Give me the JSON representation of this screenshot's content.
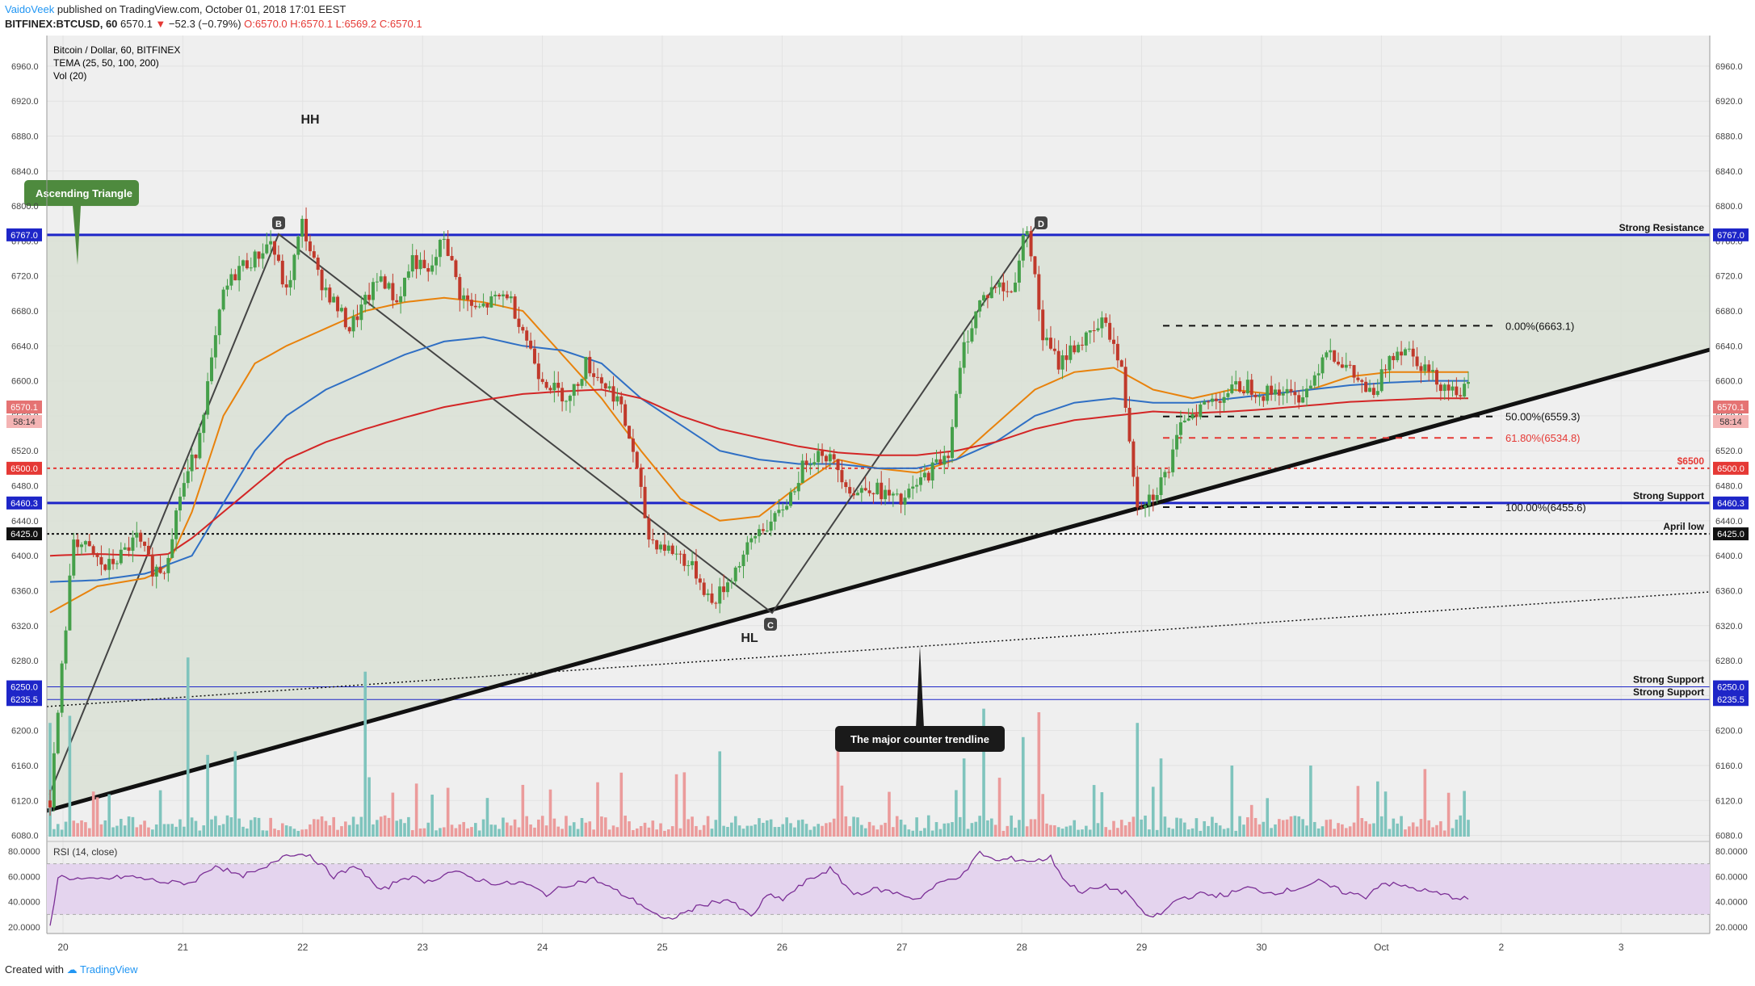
{
  "header": {
    "author": "VaidoVeek",
    "published": "published on TradingView.com, October 01, 2018 17:01 EEST"
  },
  "symbol_line": {
    "symbol": "BITFINEX:BTCUSD, 60",
    "last": "6570.1",
    "change": "−52.3 (−0.79%)",
    "ohlc": "O:6570.0 H:6570.1 L:6569.2 C:6570.1"
  },
  "legend": {
    "title": "Bitcoin / Dollar, 60, BITFINEX",
    "tema": "TEMA (25, 50, 100, 200)",
    "vol": "Vol (20)"
  },
  "footer": {
    "created": "Created with",
    "brand": "TradingView"
  },
  "colors": {
    "background": "#efefef",
    "panel": "#d9e1d5",
    "up": "#45a04a",
    "down": "#c0392b",
    "vol_up": "#7fc4bd",
    "vol_down": "#eb9b9b",
    "tema25": "#e8820c",
    "tema50": "#2f6fc4",
    "tema200": "#d32626",
    "support_blue": "#1e26c8",
    "rsi_fill": "#e4d4ee",
    "rsi_line": "#7b2f96"
  },
  "chart_data": {
    "type": "candlestick",
    "title": "Bitcoin / Dollar, 60, BITFINEX",
    "price_ylim": [
      6075,
      6995
    ],
    "y_ticks": [
      "6960.0",
      "6920.0",
      "6880.0",
      "6840.0",
      "6800.0",
      "6760.0",
      "6720.0",
      "6680.0",
      "6640.0",
      "6600.0",
      "6560.0",
      "6520.0",
      "6480.0",
      "6440.0",
      "6400.0",
      "6360.0",
      "6320.0",
      "6280.0",
      "6240.0",
      "6200.0",
      "6160.0",
      "6120.0",
      "6080.0"
    ],
    "x_labels": [
      "20",
      "21",
      "22",
      "23",
      "24",
      "25",
      "26",
      "27",
      "28",
      "29",
      "30",
      "Oct",
      "2",
      "3"
    ],
    "price_anchors": [
      [
        0,
        6120
      ],
      [
        6,
        6420
      ],
      [
        10,
        6405
      ],
      [
        14,
        6385
      ],
      [
        18,
        6400
      ],
      [
        22,
        6420
      ],
      [
        26,
        6385
      ],
      [
        29,
        6385
      ],
      [
        33,
        6470
      ],
      [
        37,
        6520
      ],
      [
        41,
        6620
      ],
      [
        44,
        6700
      ],
      [
        48,
        6730
      ],
      [
        52,
        6740
      ],
      [
        56,
        6760
      ],
      [
        60,
        6700
      ],
      [
        64,
        6780
      ],
      [
        68,
        6720
      ],
      [
        72,
        6690
      ],
      [
        76,
        6660
      ],
      [
        80,
        6690
      ],
      [
        84,
        6720
      ],
      [
        88,
        6690
      ],
      [
        92,
        6740
      ],
      [
        96,
        6720
      ],
      [
        100,
        6765
      ],
      [
        104,
        6700
      ],
      [
        108,
        6680
      ],
      [
        112,
        6690
      ],
      [
        116,
        6700
      ],
      [
        120,
        6660
      ],
      [
        124,
        6610
      ],
      [
        128,
        6590
      ],
      [
        132,
        6580
      ],
      [
        136,
        6620
      ],
      [
        140,
        6600
      ],
      [
        144,
        6580
      ],
      [
        148,
        6520
      ],
      [
        152,
        6420
      ],
      [
        156,
        6410
      ],
      [
        160,
        6400
      ],
      [
        164,
        6380
      ],
      [
        168,
        6345
      ],
      [
        172,
        6370
      ],
      [
        176,
        6400
      ],
      [
        180,
        6430
      ],
      [
        184,
        6440
      ],
      [
        188,
        6470
      ],
      [
        192,
        6510
      ],
      [
        196,
        6520
      ],
      [
        200,
        6500
      ],
      [
        204,
        6470
      ],
      [
        208,
        6480
      ],
      [
        212,
        6470
      ],
      [
        216,
        6460
      ],
      [
        220,
        6480
      ],
      [
        224,
        6500
      ],
      [
        228,
        6520
      ],
      [
        232,
        6640
      ],
      [
        236,
        6690
      ],
      [
        240,
        6710
      ],
      [
        244,
        6700
      ],
      [
        248,
        6780
      ],
      [
        252,
        6650
      ],
      [
        256,
        6620
      ],
      [
        260,
        6640
      ],
      [
        264,
        6650
      ],
      [
        268,
        6670
      ],
      [
        272,
        6610
      ],
      [
        276,
        6460
      ],
      [
        280,
        6470
      ],
      [
        284,
        6500
      ],
      [
        288,
        6560
      ],
      [
        292,
        6570
      ],
      [
        296,
        6580
      ],
      [
        300,
        6590
      ],
      [
        304,
        6595
      ],
      [
        308,
        6585
      ],
      [
        312,
        6590
      ],
      [
        316,
        6580
      ],
      [
        320,
        6595
      ],
      [
        324,
        6640
      ],
      [
        328,
        6620
      ],
      [
        332,
        6600
      ],
      [
        336,
        6580
      ],
      [
        340,
        6630
      ],
      [
        344,
        6640
      ],
      [
        348,
        6620
      ],
      [
        352,
        6600
      ],
      [
        356,
        6590
      ]
    ],
    "volume_spikes": [
      [
        0,
        160
      ],
      [
        5,
        170
      ],
      [
        35,
        185
      ],
      [
        40,
        115
      ],
      [
        47,
        120
      ],
      [
        80,
        175
      ],
      [
        145,
        90
      ],
      [
        170,
        120
      ],
      [
        200,
        140
      ],
      [
        232,
        110
      ],
      [
        237,
        180
      ],
      [
        247,
        140
      ],
      [
        251,
        175
      ],
      [
        276,
        160
      ],
      [
        282,
        110
      ],
      [
        300,
        100
      ],
      [
        320,
        100
      ],
      [
        349,
        95
      ]
    ],
    "rsi": {
      "label": "RSI (14, close)",
      "ylim": [
        15,
        85
      ],
      "ticks": [
        "80.0000",
        "60.0000",
        "40.0000",
        "20.0000"
      ],
      "anchors": [
        [
          0,
          20
        ],
        [
          2,
          60
        ],
        [
          10,
          57
        ],
        [
          20,
          60
        ],
        [
          30,
          55
        ],
        [
          36,
          55
        ],
        [
          42,
          69
        ],
        [
          48,
          60
        ],
        [
          54,
          65
        ],
        [
          60,
          78
        ],
        [
          66,
          77
        ],
        [
          72,
          60
        ],
        [
          78,
          68
        ],
        [
          84,
          48
        ],
        [
          90,
          60
        ],
        [
          96,
          56
        ],
        [
          102,
          64
        ],
        [
          108,
          58
        ],
        [
          114,
          54
        ],
        [
          120,
          55
        ],
        [
          126,
          46
        ],
        [
          132,
          54
        ],
        [
          138,
          58
        ],
        [
          144,
          48
        ],
        [
          150,
          38
        ],
        [
          156,
          25
        ],
        [
          160,
          30
        ],
        [
          166,
          38
        ],
        [
          172,
          42
        ],
        [
          178,
          28
        ],
        [
          182,
          45
        ],
        [
          186,
          42
        ],
        [
          192,
          56
        ],
        [
          198,
          66
        ],
        [
          204,
          46
        ],
        [
          210,
          50
        ],
        [
          216,
          46
        ],
        [
          220,
          42
        ],
        [
          226,
          55
        ],
        [
          232,
          62
        ],
        [
          236,
          79
        ],
        [
          240,
          72
        ],
        [
          244,
          74
        ],
        [
          250,
          72
        ],
        [
          254,
          75
        ],
        [
          258,
          55
        ],
        [
          262,
          48
        ],
        [
          268,
          52
        ],
        [
          274,
          46
        ],
        [
          278,
          28
        ],
        [
          282,
          30
        ],
        [
          286,
          42
        ],
        [
          292,
          46
        ],
        [
          298,
          45
        ],
        [
          304,
          51
        ],
        [
          310,
          47
        ],
        [
          316,
          50
        ],
        [
          322,
          56
        ],
        [
          328,
          48
        ],
        [
          334,
          44
        ],
        [
          338,
          55
        ],
        [
          344,
          52
        ],
        [
          350,
          48
        ],
        [
          356,
          44
        ],
        [
          360,
          42
        ]
      ]
    },
    "tema": {
      "tema25": [
        [
          0,
          6335
        ],
        [
          12,
          6365
        ],
        [
          25,
          6375
        ],
        [
          30,
          6390
        ],
        [
          36,
          6450
        ],
        [
          44,
          6560
        ],
        [
          52,
          6620
        ],
        [
          60,
          6640
        ],
        [
          70,
          6660
        ],
        [
          80,
          6680
        ],
        [
          90,
          6690
        ],
        [
          100,
          6695
        ],
        [
          110,
          6690
        ],
        [
          120,
          6680
        ],
        [
          130,
          6630
        ],
        [
          140,
          6580
        ],
        [
          150,
          6520
        ],
        [
          160,
          6465
        ],
        [
          170,
          6440
        ],
        [
          180,
          6445
        ],
        [
          190,
          6480
        ],
        [
          200,
          6510
        ],
        [
          210,
          6500
        ],
        [
          220,
          6495
        ],
        [
          230,
          6510
        ],
        [
          240,
          6550
        ],
        [
          250,
          6590
        ],
        [
          260,
          6610
        ],
        [
          270,
          6615
        ],
        [
          280,
          6590
        ],
        [
          290,
          6580
        ],
        [
          300,
          6590
        ],
        [
          310,
          6585
        ],
        [
          320,
          6590
        ],
        [
          330,
          6605
        ],
        [
          340,
          6610
        ],
        [
          350,
          6610
        ]
      ],
      "tema50": [
        [
          0,
          6370
        ],
        [
          12,
          6372
        ],
        [
          25,
          6380
        ],
        [
          30,
          6390
        ],
        [
          36,
          6400
        ],
        [
          44,
          6460
        ],
        [
          52,
          6520
        ],
        [
          60,
          6560
        ],
        [
          70,
          6590
        ],
        [
          80,
          6610
        ],
        [
          90,
          6630
        ],
        [
          100,
          6645
        ],
        [
          110,
          6650
        ],
        [
          120,
          6640
        ],
        [
          130,
          6635
        ],
        [
          140,
          6620
        ],
        [
          150,
          6580
        ],
        [
          160,
          6550
        ],
        [
          170,
          6520
        ],
        [
          180,
          6510
        ],
        [
          190,
          6505
        ],
        [
          200,
          6505
        ],
        [
          210,
          6500
        ],
        [
          220,
          6500
        ],
        [
          230,
          6510
        ],
        [
          240,
          6530
        ],
        [
          250,
          6560
        ],
        [
          260,
          6575
        ],
        [
          270,
          6580
        ],
        [
          280,
          6575
        ],
        [
          290,
          6575
        ],
        [
          300,
          6580
        ],
        [
          310,
          6585
        ],
        [
          320,
          6590
        ],
        [
          330,
          6595
        ],
        [
          340,
          6598
        ],
        [
          350,
          6600
        ]
      ],
      "tema200": [
        [
          0,
          6400
        ],
        [
          12,
          6402
        ],
        [
          25,
          6400
        ],
        [
          30,
          6402
        ],
        [
          36,
          6420
        ],
        [
          44,
          6450
        ],
        [
          52,
          6480
        ],
        [
          60,
          6510
        ],
        [
          70,
          6530
        ],
        [
          80,
          6545
        ],
        [
          90,
          6558
        ],
        [
          100,
          6570
        ],
        [
          110,
          6578
        ],
        [
          120,
          6585
        ],
        [
          130,
          6588
        ],
        [
          140,
          6590
        ],
        [
          150,
          6580
        ],
        [
          160,
          6560
        ],
        [
          170,
          6545
        ],
        [
          180,
          6535
        ],
        [
          190,
          6525
        ],
        [
          200,
          6518
        ],
        [
          210,
          6515
        ],
        [
          220,
          6515
        ],
        [
          230,
          6520
        ],
        [
          240,
          6530
        ],
        [
          250,
          6545
        ],
        [
          260,
          6555
        ],
        [
          270,
          6560
        ],
        [
          280,
          6565
        ],
        [
          290,
          6563
        ],
        [
          300,
          6565
        ],
        [
          310,
          6568
        ],
        [
          320,
          6572
        ],
        [
          330,
          6576
        ],
        [
          340,
          6578
        ],
        [
          350,
          6580
        ]
      ]
    },
    "price_scale_markers": [
      {
        "value": 6767.0,
        "label": "6767.0",
        "color": "#1e26c8"
      },
      {
        "value": 6570.1,
        "label": "6570.1",
        "color": "#e57373"
      },
      {
        "value": 6500.0,
        "label": "6500.0",
        "color": "#e53935"
      },
      {
        "value": 6460.3,
        "label": "6460.3",
        "color": "#1e26c8"
      },
      {
        "value": 6425.0,
        "label": "6425.0",
        "color": "#111111"
      },
      {
        "value": 6250.0,
        "label": "6250.0",
        "color": "#1e26c8"
      },
      {
        "value": 6235.5,
        "label": "6235.5",
        "color": "#1e26c8"
      }
    ],
    "countdown": "58:14",
    "levels": [
      {
        "label": "Strong Resistance",
        "value": 6767.0
      },
      {
        "label": "$6500",
        "value": 6500.0
      },
      {
        "label": "Strong Support",
        "value": 6460.3
      },
      {
        "label": "April low",
        "value": 6425.0
      },
      {
        "label": "Strong Support",
        "value": 6250.0
      },
      {
        "label": "Strong Support",
        "value": 6235.5
      }
    ],
    "fibonacci": [
      {
        "label": "0.00%(6663.1)",
        "value": 6663.1
      },
      {
        "label": "50.00%(6559.3)",
        "value": 6559.3
      },
      {
        "label": "61.80%(6534.8)",
        "value": 6534.8
      },
      {
        "label": "100.00%(6455.6)",
        "value": 6455.6
      }
    ],
    "annotations": {
      "hh": "HH",
      "hl": "HL",
      "triangle": "Ascending Triangle",
      "counter_trendline": "The major counter trendline",
      "points": [
        "B",
        "C",
        "D"
      ]
    }
  }
}
